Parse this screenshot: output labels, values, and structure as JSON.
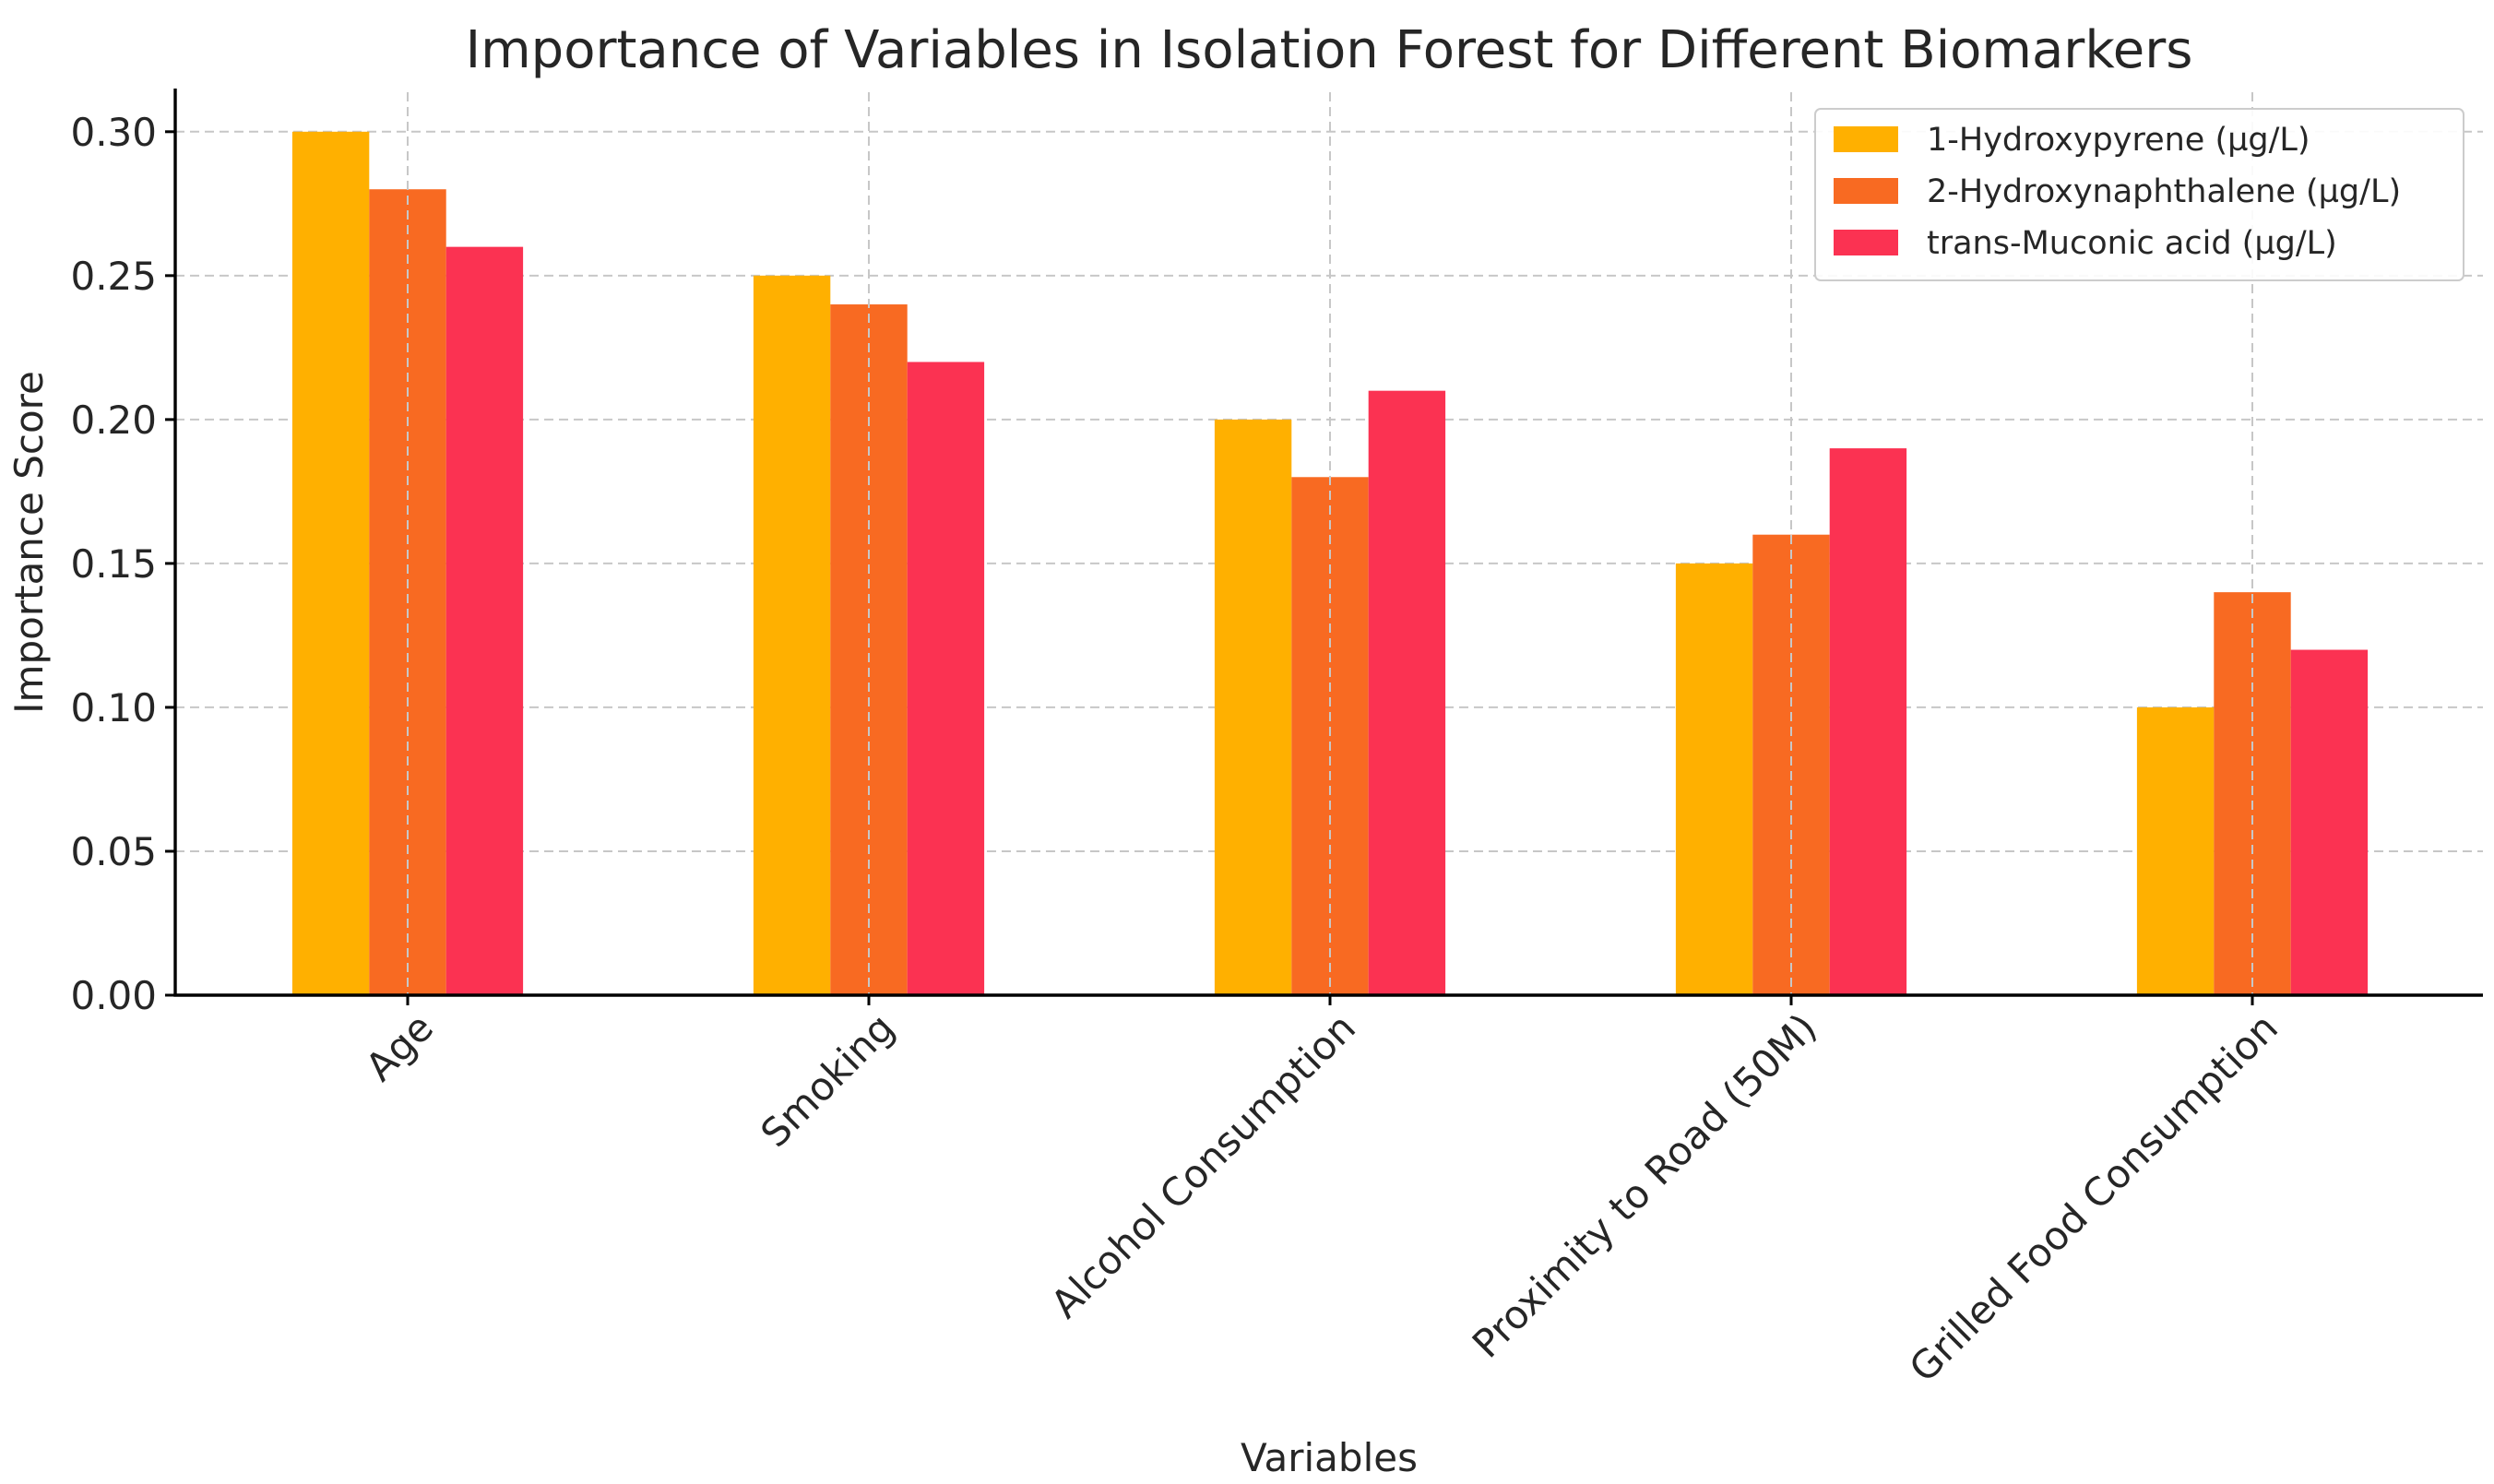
{
  "chart_data": {
    "type": "bar",
    "title": "Importance of Variables in Isolation Forest for Different Biomarkers",
    "xlabel": "Variables",
    "ylabel": "Importance Score",
    "categories": [
      "Age",
      "Smoking",
      "Alcohol Consumption",
      "Proximity to Road (50M)",
      "Grilled Food Consumption"
    ],
    "series": [
      {
        "name": "1-Hydroxypyrene (µg/L)",
        "color": "#FFB000",
        "values": [
          0.3,
          0.25,
          0.2,
          0.15,
          0.1
        ]
      },
      {
        "name": "2-Hydroxynaphthalene (µg/L)",
        "color": "#F86A22",
        "values": [
          0.28,
          0.24,
          0.18,
          0.16,
          0.14
        ]
      },
      {
        "name": "trans-Muconic acid (µg/L)",
        "color": "#FB3252",
        "values": [
          0.26,
          0.22,
          0.21,
          0.19,
          0.12
        ]
      }
    ],
    "ylim": [
      0,
      0.315
    ],
    "yticks": [
      "0.00",
      "0.05",
      "0.10",
      "0.15",
      "0.20",
      "0.25",
      "0.30"
    ],
    "grid": true,
    "legend_position": "top-right",
    "xtick_rotation": -45
  }
}
